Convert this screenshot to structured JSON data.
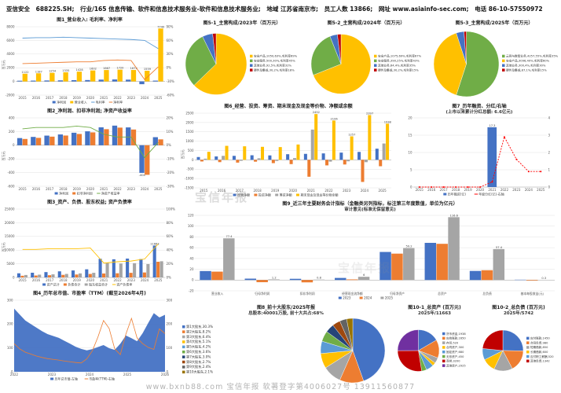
{
  "header": {
    "company": "亚信安全",
    "ticker": "688225.SH;",
    "industry": "行业/165 信息传输、软件和信息技术服务业-软件和信息技术服务业;",
    "region": "地域 江苏省南京市;",
    "employees": "员工人数 13866;",
    "website": "网址 www.asiainfo-sec.com;",
    "phone": "电话 86-10-57550972"
  },
  "watermark": "宝信年报",
  "footer": {
    "text": "www.bxnb88.com  宝信年报  软著登字第4006027号  13911560877"
  },
  "chart_data": [
    {
      "id": "fig1",
      "type": "bar-line",
      "title": "图1_营业收入: 毛利率、净利率",
      "ylabel": "百万元",
      "categories": [
        "2015",
        "2016",
        "2017",
        "2018",
        "2019",
        "2020",
        "2021",
        "2022",
        "2023",
        "2024",
        "2025"
      ],
      "bars": [
        {
          "name": "净利润",
          "color": "#4472c4",
          "values": [
            105,
            122,
            141,
            158,
            183,
            204,
            262,
            287,
            261,
            -404,
            118
          ]
        },
        {
          "name": "营业收入",
          "color": "#ffc000",
          "values": [
            1122,
            1187,
            1254,
            1335,
            1428,
            1602,
            1667,
            1720,
            1672,
            1559,
            7740
          ]
        }
      ],
      "lines": [
        {
          "name": "毛利率",
          "color": "#5b9bd5",
          "values": [
            65,
            66,
            66,
            67,
            66,
            65,
            64,
            63,
            62,
            60,
            42
          ]
        },
        {
          "name": "净利率",
          "color": "#ed7d31",
          "values": [
            9,
            10,
            11,
            12,
            13,
            13,
            16,
            17,
            16,
            -26,
            2
          ]
        }
      ],
      "label_bars": [
        1
      ],
      "label_min": 0,
      "ylim": [
        -2000,
        8000
      ],
      "ystep": 2000,
      "y2lim": [
        -60,
        90
      ],
      "y2suffix": "%"
    },
    {
      "id": "fig5_1",
      "type": "pie",
      "title": "图5-1_主营构成/2023年（百万元）",
      "legend_side": "right",
      "lfs": 3.7,
      "slices": [
        {
          "name": "安全产品",
          "value": 1050,
          "color": "#ffc000",
          "label": "安全产品,1050,63%,毛利率69%"
        },
        {
          "name": "安全服务",
          "value": 500,
          "color": "#70ad47",
          "label": "安全服务,500,30%,毛利率45%"
        },
        {
          "name": "其他业务",
          "value": 92,
          "color": "#4472c4",
          "label": "其他业务,92,5%,毛利率32%"
        },
        {
          "name": "硬件及集成",
          "value": 30,
          "color": "#c00000",
          "label": "硬件及集成,30,2%,毛利率18%"
        }
      ]
    },
    {
      "id": "fig5_2",
      "type": "pie",
      "title": "图5-2_主营构成/2024年（百万元）",
      "legend_side": "right",
      "lfs": 3.7,
      "slices": [
        {
          "name": "安全产品",
          "value": 1075,
          "color": "#ffc000",
          "label": "安全产品,1075,69%,毛利率67%"
        },
        {
          "name": "安全服务",
          "value": 390,
          "color": "#70ad47",
          "label": "安全服务,390,25%,毛利率43%"
        },
        {
          "name": "其他业务",
          "value": 64,
          "color": "#4472c4",
          "label": "其他业务,64,4%,毛利率35%"
        },
        {
          "name": "硬件及集成",
          "value": 30,
          "color": "#c00000",
          "label": "硬件及集成,30,2%,毛利率15%"
        }
      ]
    },
    {
      "id": "fig5_3",
      "type": "pie",
      "title": "图5-3_主营构成/2025年（百万元）",
      "legend_side": "right",
      "lfs": 3.7,
      "slices": [
        {
          "name": "云网与数智业务",
          "value": 4257,
          "color": "#70ad47",
          "label": "云网与数智业务,4257,55%,毛利率35%"
        },
        {
          "name": "安全产品",
          "value": 3096,
          "color": "#ffc000",
          "label": "安全产品,3096,40%,毛利率60%"
        },
        {
          "name": "其他业务",
          "value": 300,
          "color": "#4472c4",
          "label": "其他业务,300,4%,毛利率30%"
        },
        {
          "name": "硬件及集成",
          "value": 87,
          "color": "#c00000",
          "label": "硬件及集成,87,1%,毛利率15%"
        }
      ]
    },
    {
      "id": "fig2",
      "type": "bar-line",
      "title": "图2_净利润、扣非净利润; 净资产收益率",
      "ylabel": "百万元",
      "categories": [
        "2015",
        "2016",
        "2017",
        "2018",
        "2019",
        "2020",
        "2021",
        "2022",
        "2023",
        "2024",
        "2025"
      ],
      "bars": [
        {
          "name": "净利润",
          "color": "#4472c4",
          "values": [
            105,
            122,
            141,
            158,
            183,
            204,
            262,
            287,
            261,
            -404,
            118
          ]
        },
        {
          "name": "扣非净利润",
          "color": "#ed7d31",
          "values": [
            92,
            108,
            126,
            142,
            165,
            188,
            235,
            258,
            230,
            -432,
            86
          ]
        }
      ],
      "lines": [
        {
          "name": "净资产收益率",
          "color": "#70ad47",
          "values": [
            12,
            13,
            13,
            13,
            14,
            13,
            8,
            6,
            6,
            -9,
            2
          ]
        }
      ],
      "label_bars": [
        0
      ],
      "label_min": 380,
      "ylim": [
        -600,
        400
      ],
      "ystep": 200,
      "y2lim": [
        -30,
        20
      ],
      "y2suffix": "%"
    },
    {
      "id": "fig6",
      "type": "bar-line",
      "title": "图6_经营、投资、筹资、期末现金及现金等价物、净额或余额",
      "ylabel": "百万元",
      "categories": [
        "2015",
        "2016",
        "2017",
        "2018",
        "2019",
        "2020",
        "2021",
        "2022",
        "2023",
        "2024",
        "2025"
      ],
      "bars": [
        {
          "name": "经营净额",
          "color": "#4472c4",
          "values": [
            152,
            183,
            214,
            246,
            238,
            302,
            321,
            346,
            388,
            424,
            598
          ]
        },
        {
          "name": "投资净额",
          "color": "#ed7d31",
          "values": [
            -86,
            -122,
            -148,
            -98,
            -176,
            -228,
            -904,
            -296,
            -248,
            -1182,
            -342
          ]
        },
        {
          "name": "筹资净额",
          "color": "#a5a5a5",
          "values": [
            64,
            214,
            -52,
            84,
            -58,
            96,
            1622,
            -96,
            -78,
            -124,
            876
          ]
        },
        {
          "name": "期末现金及现金等价物余额",
          "color": "#ffc000",
          "values": [
            430,
            750,
            726,
            698,
            684,
            822,
            2452,
            2106,
            1257,
            2397,
            1938
          ]
        }
      ],
      "lines": [],
      "label_bars": [
        3
      ],
      "label_min": 1200,
      "ylim": [
        -1500,
        2500
      ],
      "ystep": 500
    },
    {
      "id": "fig7",
      "type": "bar-line",
      "title": "图7_历年融资、分红/右轴",
      "subtitle": "(上市以来累计分红总额: 6.6亿元)",
      "categories": [
        "2015",
        "2016",
        "2017",
        "2018",
        "2019",
        "2020",
        "2021",
        "2022",
        "2023",
        "2024",
        "2025"
      ],
      "bars": [
        {
          "name": "历年融资(亿)",
          "color": "#4472c4",
          "values": [
            0,
            0,
            0,
            0,
            0,
            0,
            17.3,
            0,
            0,
            0,
            0
          ]
        }
      ],
      "lines": [
        {
          "name": "年度分红(亿)-右轴",
          "color": "#ff0000",
          "dashed": true,
          "markers": true,
          "values": [
            0,
            0,
            0,
            0,
            0,
            0,
            0.3,
            2.9,
            1.6,
            0.9,
            0.9
          ]
        }
      ],
      "label_bars": [
        0
      ],
      "label_min": 10,
      "ylim": [
        0,
        20
      ],
      "ystep": 5,
      "y2lim": [
        0,
        4
      ],
      "y2suffix": ""
    },
    {
      "id": "fig3",
      "type": "bar-line",
      "title": "图3_资产、负债、股东权益; 资产负债率",
      "ylabel": "百万元",
      "categories": [
        "2015",
        "2016",
        "2017",
        "2018",
        "2019",
        "2020",
        "2021",
        "2022",
        "2023",
        "2024",
        "2025"
      ],
      "bars": [
        {
          "name": "资产总计",
          "color": "#4472c4",
          "values": [
            1520,
            1730,
            1960,
            2240,
            2560,
            2980,
            6820,
            6640,
            6900,
            6720,
            11663
          ]
        },
        {
          "name": "负债合计",
          "color": "#ed7d31",
          "values": [
            620,
            710,
            820,
            950,
            1080,
            1280,
            1450,
            1530,
            1690,
            1820,
            5742
          ]
        },
        {
          "name": "股东权益合计",
          "color": "#a5a5a5",
          "values": [
            900,
            1020,
            1140,
            1290,
            1480,
            1700,
            5370,
            5110,
            5210,
            4900,
            5921
          ]
        }
      ],
      "lines": [
        {
          "name": "资产负债率",
          "color": "#ffc000",
          "values": [
            41,
            41,
            42,
            42,
            42,
            43,
            21,
            23,
            24,
            27,
            49
          ]
        }
      ],
      "label_bars": [
        0
      ],
      "label_min": 11000,
      "ylim": [
        0,
        25000
      ],
      "ystep": 5000,
      "y2lim": [
        0,
        100
      ],
      "y2suffix": "%"
    },
    {
      "id": "fig9",
      "type": "bar-line",
      "title": "图9_近三年主要财务会计指标（金融类另列指标，标注第三年度数值，单位为亿元）",
      "subtitle": "审计意见(标准无保留意见)",
      "categories": [
        "营业收入",
        "归母净利润",
        "扣非净利润",
        "经营现金流净额",
        "归母净资产",
        "总资产",
        "总负债",
        "基本每股收益(元)"
      ],
      "xfont": 3.8,
      "bars": [
        {
          "name": "2023",
          "color": "#4472c4",
          "values": [
            16.7,
            2.6,
            2.3,
            3.9,
            52.1,
            69.0,
            16.9,
            0.65
          ]
        },
        {
          "name": "2024",
          "color": "#ed7d31",
          "values": [
            15.6,
            -4.0,
            -4.3,
            1.2,
            49.0,
            67.2,
            18.2,
            -1.01
          ]
        },
        {
          "name": "2025",
          "color": "#a5a5a5",
          "values": [
            77.4,
            1.2,
            0.8,
            6.0,
            59.2,
            116.6,
            57.4,
            0.3
          ]
        }
      ],
      "lines": [],
      "label_bars": [
        2
      ],
      "label_min": 0,
      "ylim": [
        -20,
        120
      ],
      "ystep": 20
    },
    {
      "id": "fig4",
      "type": "area-line",
      "title": "图4_历年总市值、市盈率（TTM）(截至2026年4月)",
      "x_labels": [
        "2022",
        "2023",
        "2024",
        "2025",
        "2026"
      ],
      "area": {
        "name": "历年总市值-左轴",
        "color": "#4472c4",
        "values": [
          265,
          240,
          215,
          200,
          185,
          170,
          158,
          150,
          142,
          130,
          118,
          105,
          96,
          90,
          95,
          104,
          112,
          99,
          92,
          118,
          152,
          141,
          128,
          162,
          205,
          246,
          228,
          239
        ]
      },
      "line": {
        "name": "市盈率(TTM)-右轴",
        "color": "#ed7d31",
        "values": [
          118,
          96,
          82,
          74,
          66,
          60,
          55,
          52,
          49,
          45,
          42,
          39,
          37,
          54,
          88,
          146,
          215,
          182,
          96,
          72,
          158,
          224,
          142,
          118,
          102,
          94,
          180,
          160
        ]
      },
      "ylim": [
        0,
        300
      ],
      "ystep": 100,
      "y2lim": [
        0,
        300
      ],
      "y2suffix": ""
    },
    {
      "id": "fig8",
      "type": "pie",
      "title": "图8_前十大股东/2025年报",
      "subtitle": "总股本:40001万股, 前十大共占:68%",
      "legend_side": "left",
      "lfs": 4.2,
      "slices": [
        {
          "name": "第1大股东",
          "value": 30.3,
          "color": "#4472c4",
          "label": "第1大股东,30.3%"
        },
        {
          "name": "第2大股东",
          "value": 8.2,
          "color": "#ed7d31",
          "label": "第2大股东,8.2%"
        },
        {
          "name": "第3大股东",
          "value": 6.4,
          "color": "#a5a5a5",
          "label": "第3大股东,6.4%"
        },
        {
          "name": "第4大股东",
          "value": 5.1,
          "color": "#ffc000",
          "label": "第4大股东,5.1%"
        },
        {
          "name": "第5大股东",
          "value": 4.2,
          "color": "#5b9bd5",
          "label": "第5大股东,4.2%"
        },
        {
          "name": "第6大股东",
          "value": 3.6,
          "color": "#70ad47",
          "label": "第6大股东,3.6%"
        },
        {
          "name": "第7大股东",
          "value": 3.0,
          "color": "#264478",
          "label": "第7大股东,3.0%"
        },
        {
          "name": "第8大股东",
          "value": 2.7,
          "color": "#9e480e",
          "label": "第8大股东,2.7%"
        },
        {
          "name": "第9大股东",
          "value": 2.4,
          "color": "#636363",
          "label": "第9大股东,2.4%"
        },
        {
          "name": "第10大股东",
          "value": 2.1,
          "color": "#997300",
          "label": "第10大股东,2.1%"
        }
      ]
    },
    {
      "id": "fig10_1",
      "type": "pie",
      "title": "图10-1_总资产 (百万元)",
      "subtitle": "2025年/11663",
      "legend_side": "right",
      "lfs": 3.6,
      "slices": [
        {
          "name": "货币资金",
          "value": 1938,
          "color": "#4472c4",
          "label": "货币资金,1938"
        },
        {
          "name": "应收账款",
          "value": 1650,
          "color": "#ed7d31",
          "label": "应收账款,1650"
        },
        {
          "name": "存货",
          "value": 520,
          "color": "#a5a5a5",
          "label": "存货,520"
        },
        {
          "name": "合同资产",
          "value": 300,
          "color": "#ffc000",
          "label": "合同资产,300"
        },
        {
          "name": "固定资产",
          "value": 680,
          "color": "#5b9bd5",
          "label": "固定资产,680"
        },
        {
          "name": "无形资产",
          "value": 450,
          "color": "#70ad47",
          "label": "无形资产,450"
        },
        {
          "name": "商誉",
          "value": 3200,
          "color": "#c00000",
          "label": "商誉,3200"
        },
        {
          "name": "其他资产",
          "value": 2925,
          "color": "#7030a0",
          "label": "其他资产,2925"
        }
      ]
    },
    {
      "id": "fig10_2",
      "type": "pie",
      "title": "图10-2_总负债 (百万元)",
      "subtitle": "2025年/5742",
      "legend_side": "right",
      "lfs": 3.6,
      "slices": [
        {
          "name": "应付账款",
          "value": 1450,
          "color": "#4472c4",
          "label": "应付账款,1450"
        },
        {
          "name": "合同负债",
          "value": 980,
          "color": "#ed7d31",
          "label": "合同负债,980"
        },
        {
          "name": "短期借款",
          "value": 850,
          "color": "#a5a5a5",
          "label": "短期借款,850"
        },
        {
          "name": "长期借款",
          "value": 600,
          "color": "#ffc000",
          "label": "长期借款,600"
        },
        {
          "name": "应付职工薪酬",
          "value": 520,
          "color": "#5b9bd5",
          "label": "应付职工薪酬,520"
        },
        {
          "name": "其他负债",
          "value": 1342,
          "color": "#c00000",
          "label": "其他负债,1342"
        }
      ]
    }
  ]
}
